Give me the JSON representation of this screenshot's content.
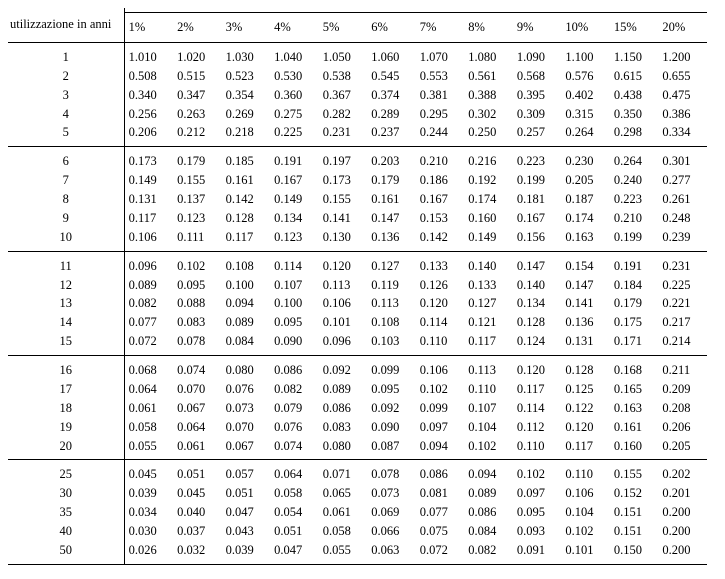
{
  "header": {
    "row_label_line2": "utilizzazione in anni",
    "rate_labels": [
      "1%",
      "2%",
      "3%",
      "4%",
      "5%",
      "6%",
      "7%",
      "8%",
      "9%",
      "10%",
      "15%",
      "20%"
    ]
  },
  "groups": [
    {
      "rows": [
        {
          "year": "1",
          "v": [
            "1.010",
            "1.020",
            "1.030",
            "1.040",
            "1.050",
            "1.060",
            "1.070",
            "1.080",
            "1.090",
            "1.100",
            "1.150",
            "1.200"
          ]
        },
        {
          "year": "2",
          "v": [
            "0.508",
            "0.515",
            "0.523",
            "0.530",
            "0.538",
            "0.545",
            "0.553",
            "0.561",
            "0.568",
            "0.576",
            "0.615",
            "0.655"
          ]
        },
        {
          "year": "3",
          "v": [
            "0.340",
            "0.347",
            "0.354",
            "0.360",
            "0.367",
            "0.374",
            "0.381",
            "0.388",
            "0.395",
            "0.402",
            "0.438",
            "0.475"
          ]
        },
        {
          "year": "4",
          "v": [
            "0.256",
            "0.263",
            "0.269",
            "0.275",
            "0.282",
            "0.289",
            "0.295",
            "0.302",
            "0.309",
            "0.315",
            "0.350",
            "0.386"
          ]
        },
        {
          "year": "5",
          "v": [
            "0.206",
            "0.212",
            "0.218",
            "0.225",
            "0.231",
            "0.237",
            "0.244",
            "0.250",
            "0.257",
            "0.264",
            "0.298",
            "0.334"
          ]
        }
      ]
    },
    {
      "rows": [
        {
          "year": "6",
          "v": [
            "0.173",
            "0.179",
            "0.185",
            "0.191",
            "0.197",
            "0.203",
            "0.210",
            "0.216",
            "0.223",
            "0.230",
            "0.264",
            "0.301"
          ]
        },
        {
          "year": "7",
          "v": [
            "0.149",
            "0.155",
            "0.161",
            "0.167",
            "0.173",
            "0.179",
            "0.186",
            "0.192",
            "0.199",
            "0.205",
            "0.240",
            "0.277"
          ]
        },
        {
          "year": "8",
          "v": [
            "0.131",
            "0.137",
            "0.142",
            "0.149",
            "0.155",
            "0.161",
            "0.167",
            "0.174",
            "0.181",
            "0.187",
            "0.223",
            "0.261"
          ]
        },
        {
          "year": "9",
          "v": [
            "0.117",
            "0.123",
            "0.128",
            "0.134",
            "0.141",
            "0.147",
            "0.153",
            "0.160",
            "0.167",
            "0.174",
            "0.210",
            "0.248"
          ]
        },
        {
          "year": "10",
          "v": [
            "0.106",
            "0.111",
            "0.117",
            "0.123",
            "0.130",
            "0.136",
            "0.142",
            "0.149",
            "0.156",
            "0.163",
            "0.199",
            "0.239"
          ]
        }
      ]
    },
    {
      "rows": [
        {
          "year": "11",
          "v": [
            "0.096",
            "0.102",
            "0.108",
            "0.114",
            "0.120",
            "0.127",
            "0.133",
            "0.140",
            "0.147",
            "0.154",
            "0.191",
            "0.231"
          ]
        },
        {
          "year": "12",
          "v": [
            "0.089",
            "0.095",
            "0.100",
            "0.107",
            "0.113",
            "0.119",
            "0.126",
            "0.133",
            "0.140",
            "0.147",
            "0.184",
            "0.225"
          ]
        },
        {
          "year": "13",
          "v": [
            "0.082",
            "0.088",
            "0.094",
            "0.100",
            "0.106",
            "0.113",
            "0.120",
            "0.127",
            "0.134",
            "0.141",
            "0.179",
            "0.221"
          ]
        },
        {
          "year": "14",
          "v": [
            "0.077",
            "0.083",
            "0.089",
            "0.095",
            "0.101",
            "0.108",
            "0.114",
            "0.121",
            "0.128",
            "0.136",
            "0.175",
            "0.217"
          ]
        },
        {
          "year": "15",
          "v": [
            "0.072",
            "0.078",
            "0.084",
            "0.090",
            "0.096",
            "0.103",
            "0.110",
            "0.117",
            "0.124",
            "0.131",
            "0.171",
            "0.214"
          ]
        }
      ]
    },
    {
      "rows": [
        {
          "year": "16",
          "v": [
            "0.068",
            "0.074",
            "0.080",
            "0.086",
            "0.092",
            "0.099",
            "0.106",
            "0.113",
            "0.120",
            "0.128",
            "0.168",
            "0.211"
          ]
        },
        {
          "year": "17",
          "v": [
            "0.064",
            "0.070",
            "0.076",
            "0.082",
            "0.089",
            "0.095",
            "0.102",
            "0.110",
            "0.117",
            "0.125",
            "0.165",
            "0.209"
          ]
        },
        {
          "year": "18",
          "v": [
            "0.061",
            "0.067",
            "0.073",
            "0.079",
            "0.086",
            "0.092",
            "0.099",
            "0.107",
            "0.114",
            "0.122",
            "0.163",
            "0.208"
          ]
        },
        {
          "year": "19",
          "v": [
            "0.058",
            "0.064",
            "0.070",
            "0.076",
            "0.083",
            "0.090",
            "0.097",
            "0.104",
            "0.112",
            "0.120",
            "0.161",
            "0.206"
          ]
        },
        {
          "year": "20",
          "v": [
            "0.055",
            "0.061",
            "0.067",
            "0.074",
            "0.080",
            "0.087",
            "0.094",
            "0.102",
            "0.110",
            "0.117",
            "0.160",
            "0.205"
          ]
        }
      ]
    },
    {
      "rows": [
        {
          "year": "25",
          "v": [
            "0.045",
            "0.051",
            "0.057",
            "0.064",
            "0.071",
            "0.078",
            "0.086",
            "0.094",
            "0.102",
            "0.110",
            "0.155",
            "0.202"
          ]
        },
        {
          "year": "30",
          "v": [
            "0.039",
            "0.045",
            "0.051",
            "0.058",
            "0.065",
            "0.073",
            "0.081",
            "0.089",
            "0.097",
            "0.106",
            "0.152",
            "0.201"
          ]
        },
        {
          "year": "35",
          "v": [
            "0.034",
            "0.040",
            "0.047",
            "0.054",
            "0.061",
            "0.069",
            "0.077",
            "0.086",
            "0.095",
            "0.104",
            "0.151",
            "0.200"
          ]
        },
        {
          "year": "40",
          "v": [
            "0.030",
            "0.037",
            "0.043",
            "0.051",
            "0.058",
            "0.066",
            "0.075",
            "0.084",
            "0.093",
            "0.102",
            "0.151",
            "0.200"
          ]
        },
        {
          "year": "50",
          "v": [
            "0.026",
            "0.032",
            "0.039",
            "0.047",
            "0.055",
            "0.063",
            "0.072",
            "0.082",
            "0.091",
            "0.101",
            "0.150",
            "0.200"
          ]
        }
      ]
    }
  ]
}
